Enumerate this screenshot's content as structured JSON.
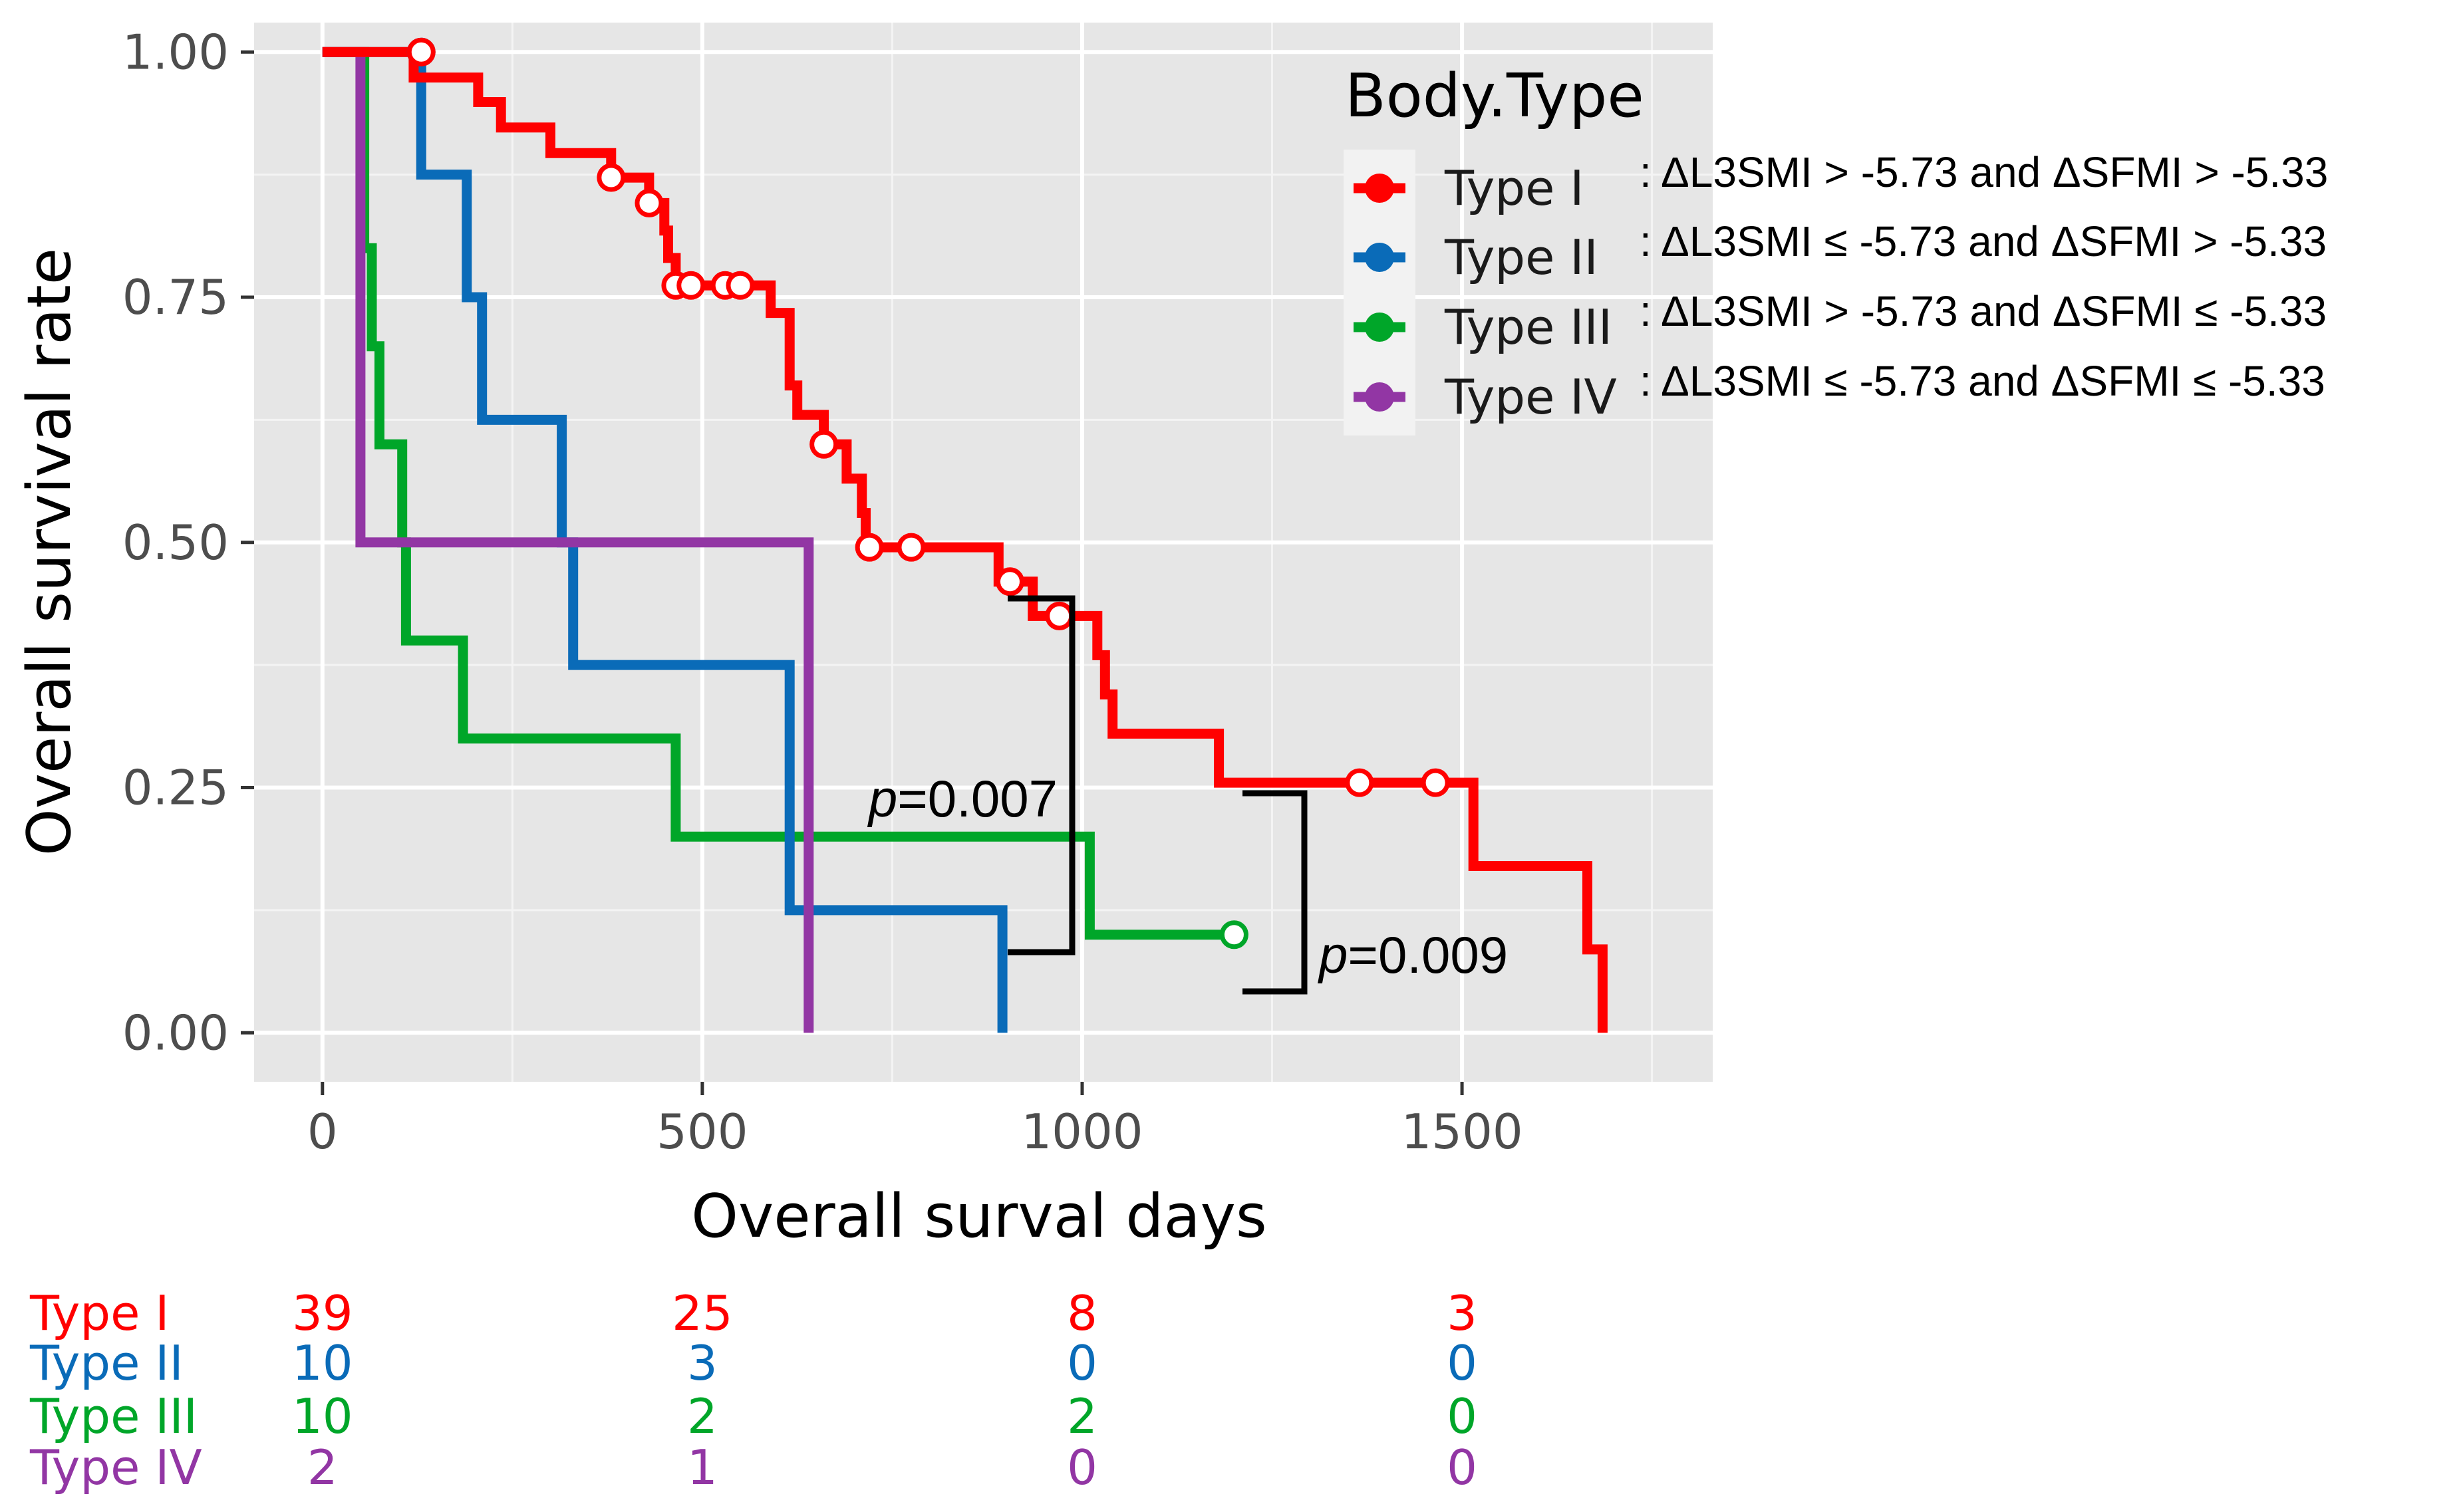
{
  "chart_data": {
    "type": "line",
    "subtype": "kaplan-meier step",
    "xlabel": "Overall surval days",
    "ylabel": "Overall survival rate",
    "xlim": [
      -90,
      1830
    ],
    "ylim": [
      -0.05,
      1.03
    ],
    "x_ticks": [
      0,
      500,
      1000,
      1500
    ],
    "x_tick_labels": [
      "0",
      "500",
      "1000",
      "1500"
    ],
    "y_ticks": [
      0,
      0.25,
      0.5,
      0.75,
      1.0
    ],
    "y_tick_labels": [
      "0.00",
      "0.25",
      "0.50",
      "0.75",
      "1.00"
    ],
    "grid": true,
    "legend": {
      "title": "Body.Type",
      "placement": "top-right",
      "entries": [
        {
          "label": "Type I",
          "definition": ": ΔL3SMI > -5.73 and ΔSFMI > -5.33"
        },
        {
          "label": "Type II",
          "definition": ": ΔL3SMI ≤ -5.73 and ΔSFMI > -5.33"
        },
        {
          "label": "Type III",
          "definition": ": ΔL3SMI > -5.73 and ΔSFMI ≤ -5.33"
        },
        {
          "label": "Type IV",
          "definition": ": ΔL3SMI ≤ -5.73 and ΔSFMI ≤ -5.33"
        }
      ]
    },
    "series": [
      {
        "name": "Type I",
        "color": "#ff0000",
        "steps": [
          [
            0,
            1.0
          ],
          [
            120,
            1.0
          ],
          [
            120,
            0.974
          ],
          [
            205,
            0.974
          ],
          [
            205,
            0.949
          ],
          [
            235,
            0.949
          ],
          [
            235,
            0.923
          ],
          [
            300,
            0.923
          ],
          [
            300,
            0.897
          ],
          [
            380,
            0.897
          ],
          [
            380,
            0.872
          ],
          [
            430,
            0.872
          ],
          [
            430,
            0.846
          ],
          [
            450,
            0.846
          ],
          [
            450,
            0.818
          ],
          [
            455,
            0.818
          ],
          [
            455,
            0.79
          ],
          [
            465,
            0.79
          ],
          [
            465,
            0.762
          ],
          [
            590,
            0.762
          ],
          [
            590,
            0.734
          ],
          [
            615,
            0.734
          ],
          [
            615,
            0.66
          ],
          [
            625,
            0.66
          ],
          [
            625,
            0.63
          ],
          [
            660,
            0.63
          ],
          [
            660,
            0.6
          ],
          [
            690,
            0.6
          ],
          [
            690,
            0.565
          ],
          [
            710,
            0.565
          ],
          [
            710,
            0.53
          ],
          [
            715,
            0.53
          ],
          [
            715,
            0.495
          ],
          [
            890,
            0.495
          ],
          [
            890,
            0.46
          ],
          [
            935,
            0.46
          ],
          [
            935,
            0.425
          ],
          [
            1020,
            0.425
          ],
          [
            1020,
            0.385
          ],
          [
            1030,
            0.385
          ],
          [
            1030,
            0.345
          ],
          [
            1040,
            0.345
          ],
          [
            1040,
            0.305
          ],
          [
            1180,
            0.305
          ],
          [
            1180,
            0.255
          ],
          [
            1515,
            0.255
          ],
          [
            1515,
            0.17
          ],
          [
            1665,
            0.17
          ],
          [
            1665,
            0.085
          ],
          [
            1685,
            0.085
          ],
          [
            1685,
            0.0
          ]
        ],
        "censored": [
          [
            130,
            1.0
          ],
          [
            380,
            0.872
          ],
          [
            430,
            0.846
          ],
          [
            465,
            0.762
          ],
          [
            485,
            0.762
          ],
          [
            530,
            0.762
          ],
          [
            550,
            0.762
          ],
          [
            660,
            0.6
          ],
          [
            720,
            0.495
          ],
          [
            775,
            0.495
          ],
          [
            905,
            0.46
          ],
          [
            970,
            0.425
          ],
          [
            1365,
            0.255
          ],
          [
            1465,
            0.255
          ]
        ]
      },
      {
        "name": "Type II",
        "color": "#0a6bb8",
        "steps": [
          [
            0,
            1.0
          ],
          [
            130,
            1.0
          ],
          [
            130,
            0.875
          ],
          [
            190,
            0.875
          ],
          [
            190,
            0.75
          ],
          [
            210,
            0.75
          ],
          [
            210,
            0.625
          ],
          [
            315,
            0.625
          ],
          [
            315,
            0.5
          ],
          [
            330,
            0.5
          ],
          [
            330,
            0.375
          ],
          [
            615,
            0.375
          ],
          [
            615,
            0.125
          ],
          [
            895,
            0.125
          ],
          [
            895,
            0.0
          ]
        ],
        "censored": [
          [
            130,
            1.0
          ]
        ]
      },
      {
        "name": "Type III",
        "color": "#00a629",
        "steps": [
          [
            0,
            1.0
          ],
          [
            55,
            1.0
          ],
          [
            55,
            0.8
          ],
          [
            65,
            0.8
          ],
          [
            65,
            0.7
          ],
          [
            75,
            0.7
          ],
          [
            75,
            0.6
          ],
          [
            105,
            0.6
          ],
          [
            105,
            0.5
          ],
          [
            110,
            0.5
          ],
          [
            110,
            0.4
          ],
          [
            185,
            0.4
          ],
          [
            185,
            0.3
          ],
          [
            465,
            0.3
          ],
          [
            465,
            0.2
          ],
          [
            1010,
            0.2
          ],
          [
            1010,
            0.1
          ],
          [
            1200,
            0.1
          ]
        ],
        "censored": [
          [
            1200,
            0.1
          ]
        ]
      },
      {
        "name": "Type IV",
        "color": "#9236a4",
        "steps": [
          [
            0,
            1.0
          ],
          [
            50,
            1.0
          ],
          [
            50,
            0.5
          ],
          [
            640,
            0.5
          ],
          [
            640,
            0.0
          ]
        ],
        "censored": []
      }
    ],
    "annotations": [
      {
        "prefix": "p",
        "text": "=0.007",
        "bracket": "Type I vs Type III"
      },
      {
        "prefix": "p",
        "text": "=0.009",
        "bracket": "Type I vs Type III (late)"
      }
    ],
    "risk_table": {
      "times": [
        0,
        500,
        1000,
        1500
      ],
      "rows": [
        {
          "label": "Type I",
          "color": "#ff0000",
          "counts": [
            "39",
            "25",
            "8",
            "3"
          ]
        },
        {
          "label": "Type II",
          "color": "#0a6bb8",
          "counts": [
            "10",
            "3",
            "0",
            "0"
          ]
        },
        {
          "label": "Type III",
          "color": "#00a629",
          "counts": [
            "10",
            "2",
            "2",
            "0"
          ]
        },
        {
          "label": "Type IV",
          "color": "#9236a4",
          "counts": [
            "2",
            "1",
            "0",
            "0"
          ]
        }
      ]
    }
  }
}
